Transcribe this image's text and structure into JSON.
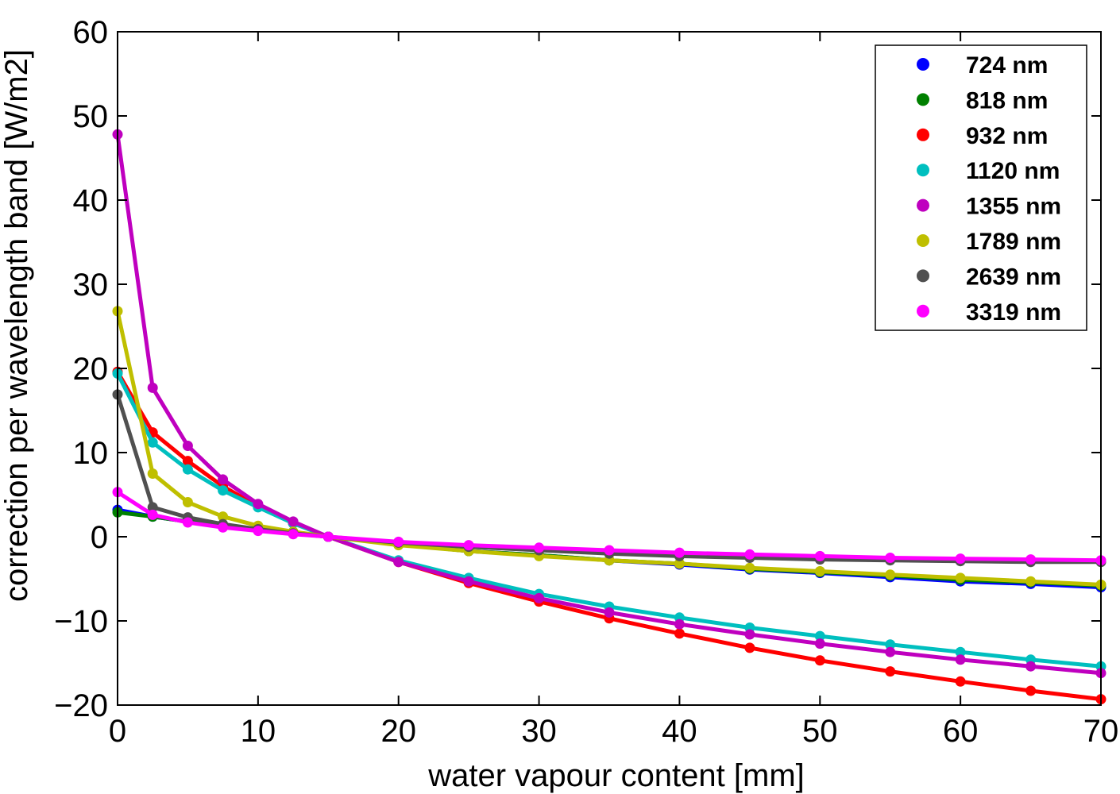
{
  "chart_data": {
    "type": "line",
    "xlabel": "water vapour content [mm]",
    "ylabel": "correction per wavelength band [W/m2]",
    "xlim": [
      0,
      70
    ],
    "ylim": [
      -20,
      60
    ],
    "xticks": [
      0,
      10,
      20,
      30,
      40,
      50,
      60,
      70
    ],
    "yticks": [
      -20,
      -10,
      0,
      10,
      20,
      30,
      40,
      50,
      60
    ],
    "xtick_labels": [
      "0",
      "10",
      "20",
      "30",
      "40",
      "50",
      "60",
      "70"
    ],
    "ytick_labels": [
      "−20",
      "−10",
      "0",
      "10",
      "20",
      "30",
      "40",
      "50",
      "60"
    ],
    "grid": false,
    "legend_position": "top-right",
    "x": [
      0,
      2.5,
      5,
      7.5,
      10,
      12.5,
      15,
      20,
      25,
      30,
      35,
      40,
      45,
      50,
      55,
      60,
      65,
      70
    ],
    "series": [
      {
        "name": "724 nm",
        "color": "#0000ff",
        "values": [
          3.2,
          2.4,
          1.8,
          1.3,
          0.8,
          0.4,
          0,
          -0.9,
          -1.7,
          -2.2,
          -2.8,
          -3.3,
          -3.9,
          -4.3,
          -4.8,
          -5.3,
          -5.6,
          -6.0
        ]
      },
      {
        "name": "818 nm",
        "color": "#008000",
        "values": [
          2.9,
          2.4,
          1.8,
          1.3,
          0.8,
          0.4,
          0,
          -0.9,
          -1.7,
          -2.2,
          -2.8,
          -3.2,
          -3.8,
          -4.2,
          -4.6,
          -5.1,
          -5.4,
          -5.8
        ]
      },
      {
        "name": "932 nm",
        "color": "#ff0000",
        "values": [
          19.6,
          12.4,
          9.0,
          6.0,
          3.6,
          1.6,
          0,
          -3.0,
          -5.5,
          -7.7,
          -9.7,
          -11.5,
          -13.2,
          -14.7,
          -16.0,
          -17.2,
          -18.3,
          -19.3
        ]
      },
      {
        "name": "1120 nm",
        "color": "#00bfbf",
        "values": [
          19.4,
          11.2,
          8.0,
          5.5,
          3.5,
          1.6,
          0,
          -2.8,
          -4.9,
          -6.8,
          -8.3,
          -9.6,
          -10.8,
          -11.8,
          -12.8,
          -13.7,
          -14.6,
          -15.4
        ]
      },
      {
        "name": "1355 nm",
        "color": "#bf00bf",
        "values": [
          47.8,
          17.7,
          10.8,
          6.8,
          3.9,
          1.8,
          0,
          -3.0,
          -5.3,
          -7.3,
          -9.0,
          -10.4,
          -11.6,
          -12.7,
          -13.7,
          -14.6,
          -15.4,
          -16.2
        ]
      },
      {
        "name": "1789 nm",
        "color": "#bfbf00",
        "values": [
          26.8,
          7.5,
          4.1,
          2.4,
          1.3,
          0.6,
          0,
          -1.0,
          -1.7,
          -2.3,
          -2.8,
          -3.2,
          -3.7,
          -4.1,
          -4.5,
          -4.9,
          -5.3,
          -5.7
        ]
      },
      {
        "name": "2639 nm",
        "color": "#505050",
        "values": [
          16.9,
          3.5,
          2.3,
          1.5,
          0.9,
          0.4,
          0,
          -0.7,
          -1.2,
          -1.6,
          -2.0,
          -2.3,
          -2.5,
          -2.7,
          -2.8,
          -2.9,
          -3.0,
          -3.0
        ]
      },
      {
        "name": "3319 nm",
        "color": "#ff00ff",
        "values": [
          5.3,
          2.6,
          1.7,
          1.1,
          0.7,
          0.3,
          0,
          -0.6,
          -1.0,
          -1.3,
          -1.6,
          -1.9,
          -2.1,
          -2.3,
          -2.5,
          -2.6,
          -2.7,
          -2.8
        ]
      }
    ]
  }
}
